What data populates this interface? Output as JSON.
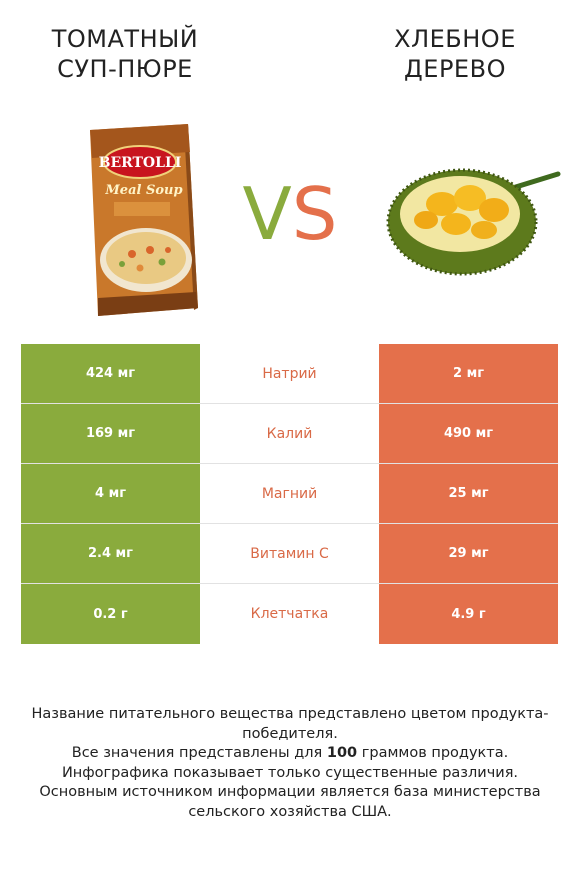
{
  "colors": {
    "green": "#8aab3d",
    "orange": "#e4704b",
    "mid_text": "#d96a47"
  },
  "left_product": {
    "title": "ТОМАТНЫЙ\nСУП-ПЮРЕ",
    "image_icon": "soup-box-image",
    "brand_text": "BERTOLLI",
    "sub_text": "Meal Soup"
  },
  "right_product": {
    "title": "ХЛЕБНОЕ\nДЕРЕВО",
    "image_icon": "jackfruit-image"
  },
  "vs": {
    "v": "V",
    "s": "S"
  },
  "rows": [
    {
      "nutrient": "Натрий",
      "left": "424 мг",
      "right": "2 мг",
      "winner": "left"
    },
    {
      "nutrient": "Калий",
      "left": "169 мг",
      "right": "490 мг",
      "winner": "right"
    },
    {
      "nutrient": "Магний",
      "left": "4 мг",
      "right": "25 мг",
      "winner": "right"
    },
    {
      "nutrient": "Витамин C",
      "left": "2.4 мг",
      "right": "29 мг",
      "winner": "right"
    },
    {
      "nutrient": "Клетчатка",
      "left": "0.2 г",
      "right": "4.9 г",
      "winner": "right"
    }
  ],
  "footer": {
    "line1": "Название питательного вещества представлено цветом продукта-победителя.",
    "line2_pre": "Все значения представлены для ",
    "line2_bold": "100",
    "line2_post": " граммов продукта.",
    "line3": "Инфографика показывает только существенные различия.",
    "line4": "Основным источником информации является база министерства сельского хозяйства США."
  }
}
